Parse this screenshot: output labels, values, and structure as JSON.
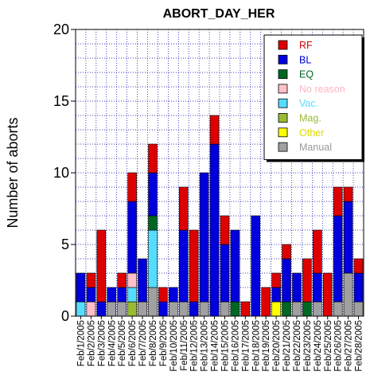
{
  "chart_data": {
    "type": "bar",
    "stacked": true,
    "title": "ABORT_DAY_HER",
    "xlabel": "",
    "ylabel": "Number of aborts",
    "ylim": [
      0,
      20
    ],
    "yticks": [
      0,
      5,
      10,
      15,
      20
    ],
    "grid": true,
    "legend_position": "top-right",
    "categories": [
      "Feb/1/2005",
      "Feb/2/2005",
      "Feb/3/2005",
      "Feb/4/2005",
      "Feb/5/2005",
      "Feb/6/2005",
      "Feb/7/2005",
      "Feb/8/2005",
      "Feb/9/2005",
      "Feb/10/2005",
      "Feb/11/2005",
      "Feb/12/2005",
      "Feb/13/2005",
      "Feb/14/2005",
      "Feb/15/2005",
      "Feb/16/2005",
      "Feb/17/2005",
      "Feb/18/2005",
      "Feb/19/2005",
      "Feb/20/2005",
      "Feb/21/2005",
      "Feb/22/2005",
      "Feb/23/2005",
      "Feb/24/2005",
      "Feb/25/2005",
      "Feb/26/2005",
      "Feb/27/2005",
      "Feb/28/2005"
    ],
    "series": [
      {
        "name": "Manual",
        "color": "#a0a0a0",
        "values": [
          0,
          0,
          0,
          1,
          1,
          0,
          1,
          2,
          0,
          1,
          1,
          0,
          1,
          0,
          1,
          0,
          0,
          0,
          0,
          0,
          0,
          1,
          0,
          1,
          0,
          1,
          3,
          1
        ]
      },
      {
        "name": "Other",
        "color": "#ffff00",
        "values": [
          0,
          0,
          0,
          0,
          0,
          0,
          0,
          0,
          0,
          0,
          0,
          0,
          0,
          0,
          0,
          0,
          0,
          0,
          0,
          1,
          0,
          0,
          0,
          0,
          0,
          0,
          0,
          0
        ]
      },
      {
        "name": "Mag.",
        "color": "#99bb33",
        "values": [
          0,
          0,
          0,
          0,
          0,
          1,
          0,
          0,
          0,
          0,
          0,
          0,
          0,
          0,
          0,
          0,
          0,
          0,
          0,
          0,
          0,
          0,
          0,
          0,
          0,
          0,
          0,
          0
        ]
      },
      {
        "name": "Vac.",
        "color": "#55ddff",
        "values": [
          1,
          0,
          0,
          0,
          0,
          1,
          0,
          4,
          0,
          0,
          0,
          0,
          0,
          0,
          0,
          0,
          0,
          0,
          0,
          0,
          0,
          0,
          0,
          0,
          0,
          0,
          0,
          0
        ]
      },
      {
        "name": "No reason",
        "color": "#ffc0cb",
        "values": [
          0,
          1,
          0,
          0,
          0,
          1,
          0,
          0,
          0,
          0,
          0,
          0,
          0,
          0,
          0,
          0,
          0,
          0,
          0,
          0,
          0,
          0,
          0,
          0,
          0,
          0,
          0,
          0
        ]
      },
      {
        "name": "EQ",
        "color": "#006622",
        "values": [
          0,
          0,
          0,
          0,
          0,
          0,
          0,
          1,
          0,
          0,
          0,
          0,
          0,
          0,
          0,
          1,
          0,
          0,
          0,
          0,
          1,
          0,
          1,
          0,
          0,
          0,
          0,
          0
        ]
      },
      {
        "name": "BL",
        "color": "#0000dd",
        "values": [
          2,
          1,
          1,
          1,
          1,
          5,
          3,
          3,
          1,
          1,
          5,
          1,
          9,
          12,
          4,
          5,
          0,
          7,
          0,
          1,
          3,
          2,
          0,
          2,
          0,
          6,
          5,
          2
        ]
      },
      {
        "name": "RF",
        "color": "#dd0000",
        "values": [
          0,
          1,
          5,
          0,
          1,
          2,
          0,
          2,
          1,
          0,
          3,
          5,
          0,
          2,
          2,
          0,
          1,
          0,
          2,
          1,
          1,
          0,
          3,
          3,
          3,
          2,
          1,
          1
        ]
      }
    ],
    "legend": [
      {
        "label": "RF",
        "color": "#dd0000",
        "text_color": "#cc0000"
      },
      {
        "label": "BL",
        "color": "#0000dd",
        "text_color": "#0000cc"
      },
      {
        "label": "EQ",
        "color": "#006622",
        "text_color": "#006622"
      },
      {
        "label": "No reason",
        "color": "#ffc0cb",
        "text_color": "#ffb6c1"
      },
      {
        "label": "Vac.",
        "color": "#55ddff",
        "text_color": "#55ddff"
      },
      {
        "label": "Mag.",
        "color": "#99bb33",
        "text_color": "#99bb33"
      },
      {
        "label": "Other",
        "color": "#ffff00",
        "text_color": "#dddd00"
      },
      {
        "label": "Manual",
        "color": "#a0a0a0",
        "text_color": "#999999"
      }
    ]
  }
}
